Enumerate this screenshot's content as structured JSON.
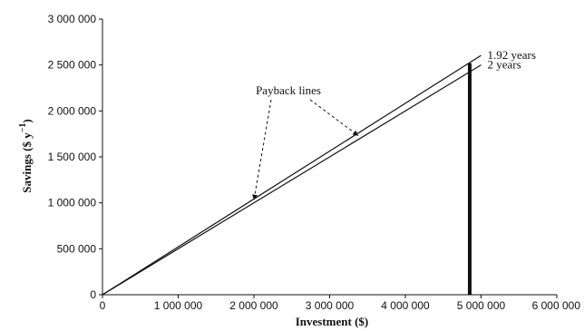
{
  "chart_data": {
    "type": "line",
    "xlabel": "Investment ($)",
    "ylabel": "Savings ($ y",
    "ylabel_sup": "−1",
    "ylabel_close": ")",
    "xlim": [
      0,
      6000000
    ],
    "ylim": [
      0,
      3000000
    ],
    "x_ticks": [
      "0",
      "1 000 000",
      "2 000 000",
      "3 000 000",
      "4 000 000",
      "5 000 000",
      "6 000 000"
    ],
    "y_ticks": [
      "0",
      "500 000",
      "1 000 000",
      "1 500 000",
      "2 000 000",
      "2 500 000",
      "3 000 000"
    ],
    "grid": false,
    "series": [
      {
        "name": "1.92 years",
        "x": [
          0,
          5000000
        ],
        "y": [
          0,
          2604167
        ]
      },
      {
        "name": "2 years",
        "x": [
          0,
          5000000
        ],
        "y": [
          0,
          2500000
        ]
      }
    ],
    "vertical_line": {
      "x": 4850000,
      "y": [
        0,
        2520000
      ]
    },
    "annotation": {
      "text": "Payback lines",
      "targets": [
        {
          "x": 2000000,
          "y": 1030000
        },
        {
          "x": 3380000,
          "y": 1730000
        }
      ]
    }
  }
}
